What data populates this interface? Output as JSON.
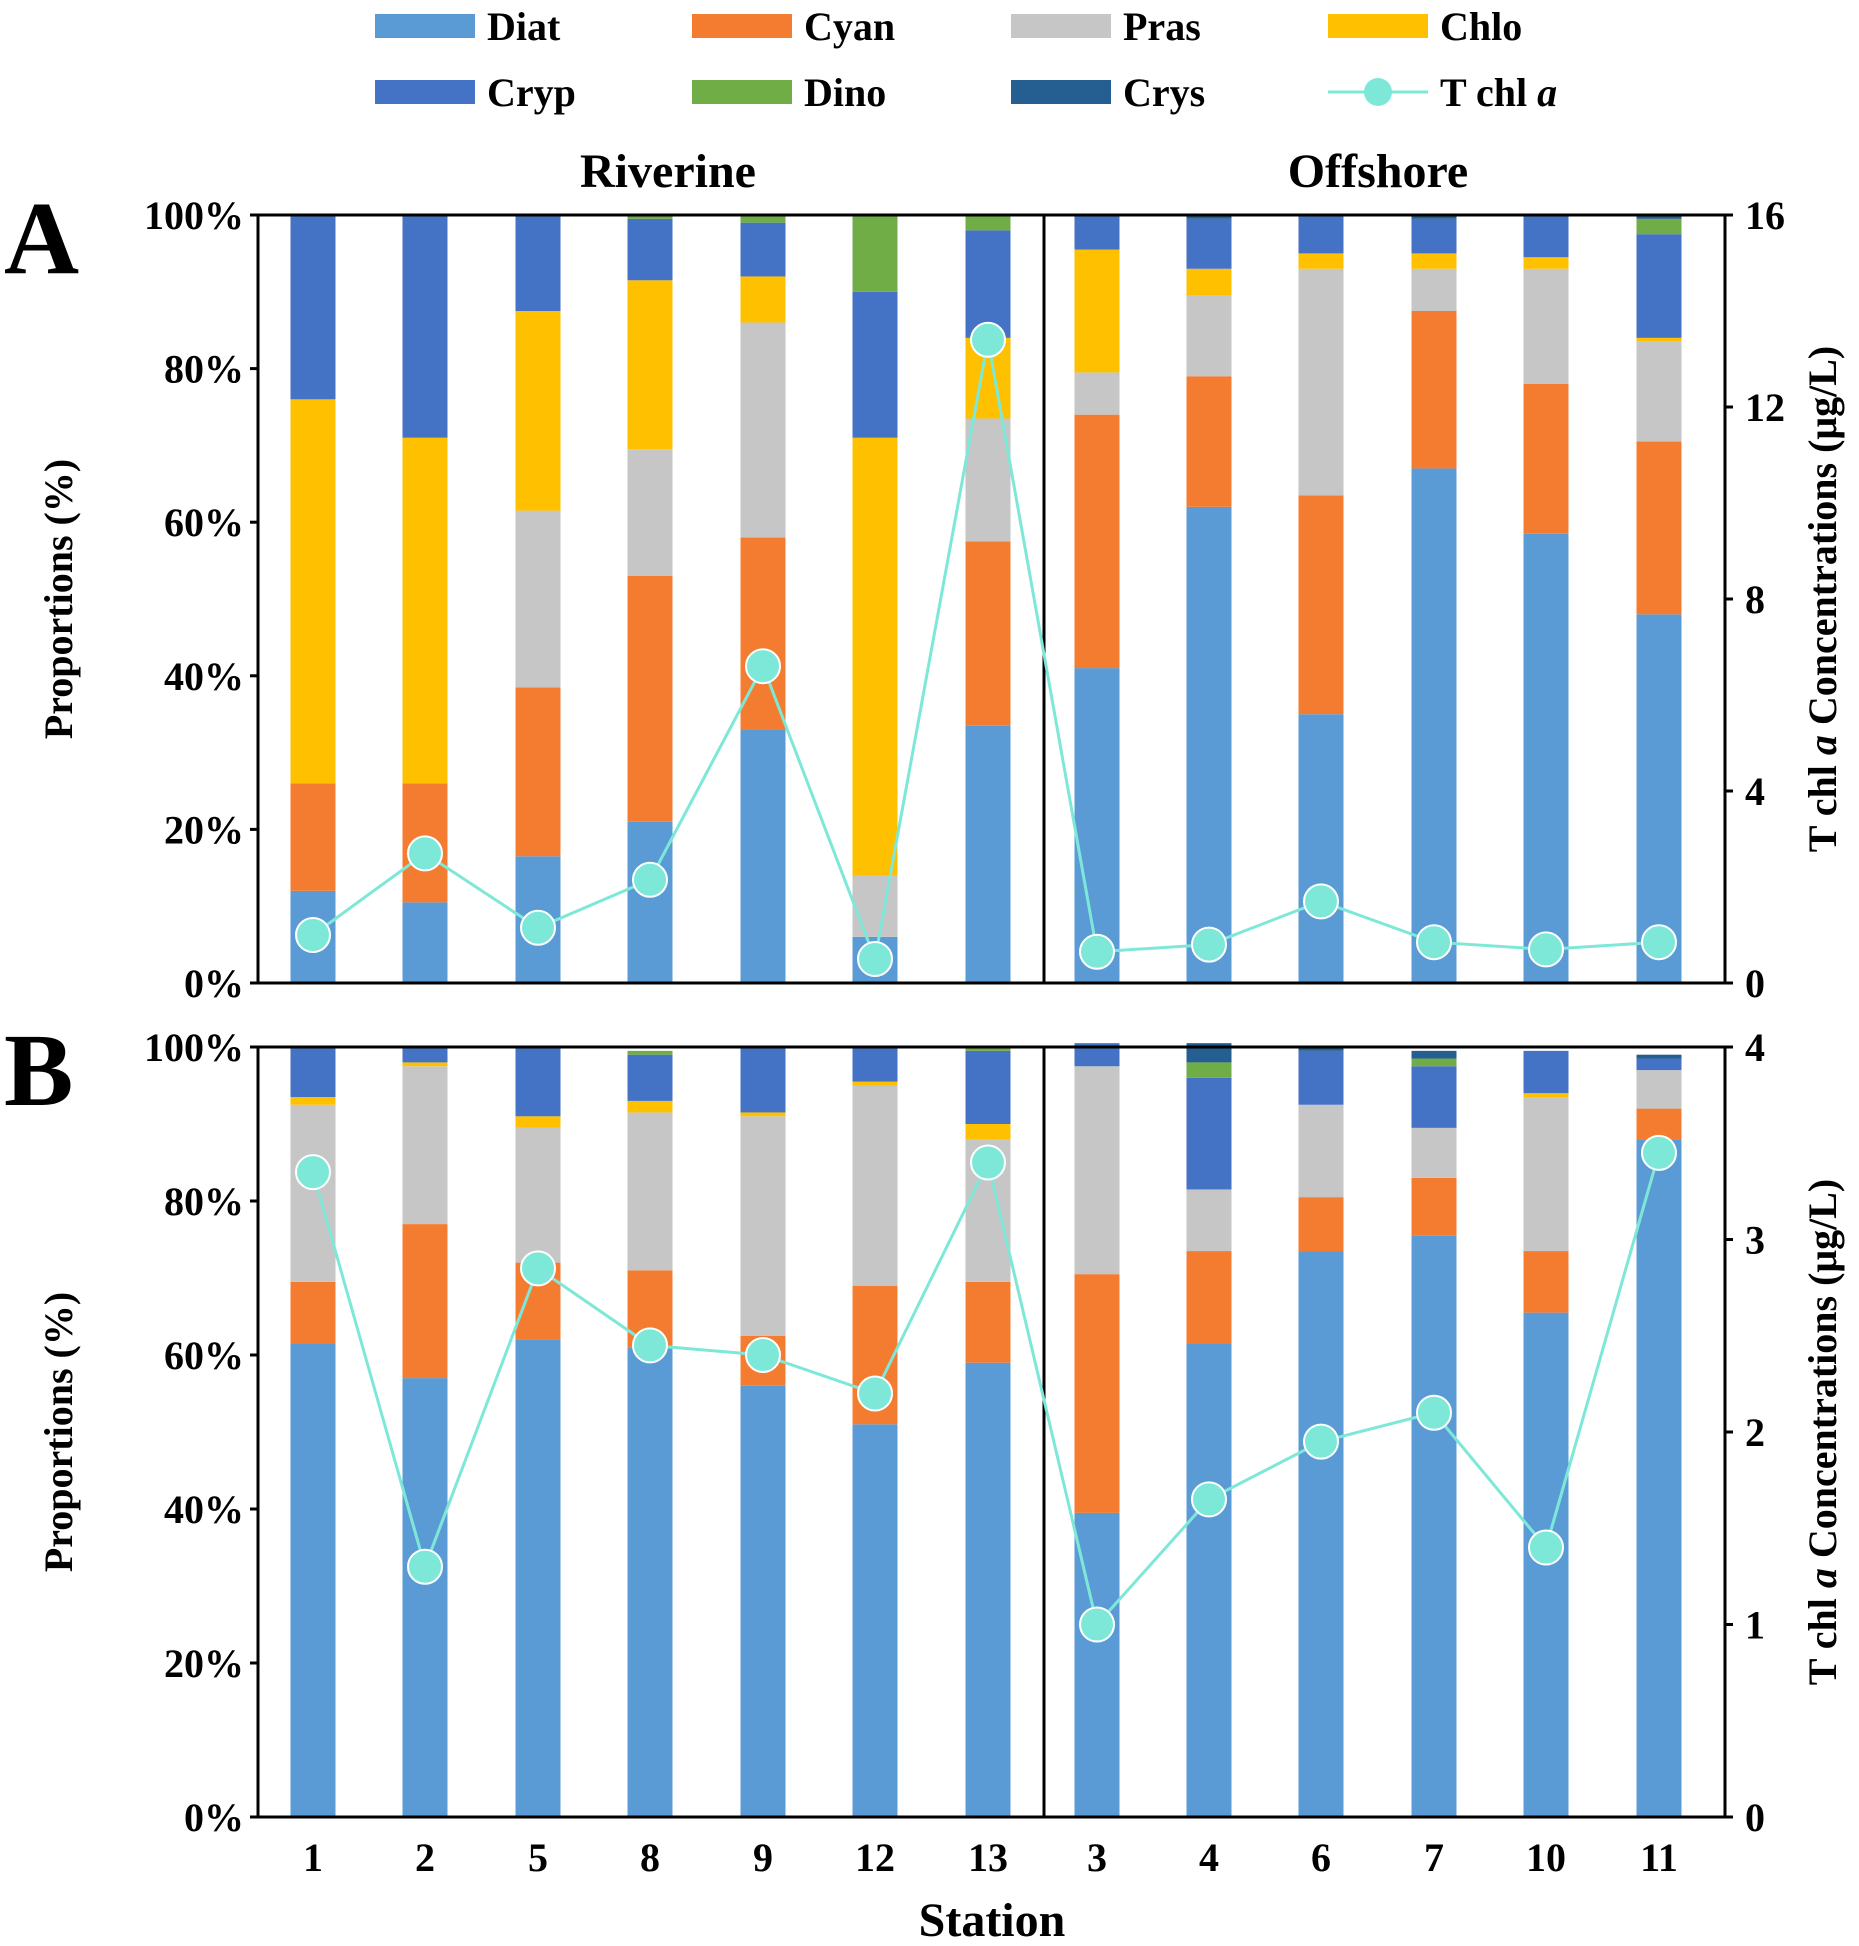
{
  "chart_data": {
    "type": "stacked-bar-with-line",
    "legend": {
      "items": [
        {
          "key": "Diat",
          "label": "Diat",
          "color": "#5B9BD5",
          "kind": "bar"
        },
        {
          "key": "Cyan",
          "label": "Cyan",
          "color": "#F47C30",
          "kind": "bar"
        },
        {
          "key": "Pras",
          "label": "Pras",
          "color": "#C6C6C6",
          "kind": "bar"
        },
        {
          "key": "Chlo",
          "label": "Chlo",
          "color": "#FFC000",
          "kind": "bar"
        },
        {
          "key": "Cryp",
          "label": "Cryp",
          "color": "#4472C4",
          "kind": "bar"
        },
        {
          "key": "Dino",
          "label": "Dino",
          "color": "#70AD47",
          "kind": "bar"
        },
        {
          "key": "Crys",
          "label": "Crys",
          "color": "#255E91",
          "kind": "bar"
        },
        {
          "key": "Tchla",
          "label": "T chl ",
          "label_italic": "a",
          "color": "#7EE8D8",
          "kind": "line"
        }
      ]
    },
    "series_order": [
      "Diat",
      "Cyan",
      "Pras",
      "Chlo",
      "Cryp",
      "Dino",
      "Crys"
    ],
    "regions": [
      "Riverine",
      "Offshore"
    ],
    "stations": [
      "1",
      "2",
      "5",
      "8",
      "9",
      "12",
      "13",
      "3",
      "4",
      "6",
      "7",
      "10",
      "11"
    ],
    "riverine_count": 7,
    "xlabel": "Station",
    "ylabel_left": "Proportions (%)",
    "ylabel_right_prefix": "T chl ",
    "ylabel_right_italic": "a",
    "ylabel_right_suffix": " Concentrations  (μg/L)",
    "panels": [
      {
        "letter": "A",
        "y_ticks": [
          "0%",
          "20%",
          "40%",
          "60%",
          "80%",
          "100%"
        ],
        "y2_ticks": [
          "0",
          "4",
          "8",
          "12",
          "16"
        ],
        "y2lim": [
          0,
          16
        ],
        "composition": {
          "Diat": [
            12,
            10.5,
            16.5,
            21,
            33,
            6,
            33.5,
            41,
            62,
            35,
            67,
            58.5,
            48
          ],
          "Cyan": [
            14,
            15.5,
            22,
            32,
            25,
            0,
            24,
            33,
            17,
            28.5,
            20.5,
            19.5,
            22.5
          ],
          "Pras": [
            0,
            0,
            23,
            16.5,
            28,
            8,
            16,
            5.5,
            10.5,
            29.5,
            5.5,
            15,
            13
          ],
          "Chlo": [
            50,
            45,
            26,
            22,
            6,
            57,
            10.5,
            16,
            3.5,
            2,
            2,
            1.5,
            0.5
          ],
          "Cryp": [
            24,
            29,
            12.5,
            8,
            7,
            19,
            14,
            4.5,
            6.5,
            5,
            4.5,
            5.5,
            13.5
          ],
          "Dino": [
            0,
            0,
            0,
            0.5,
            1,
            10,
            2,
            0,
            0,
            0,
            0,
            0,
            2
          ],
          "Crys": [
            0,
            0,
            0,
            0,
            0,
            0,
            0,
            0,
            0.5,
            0,
            0.5,
            0,
            0.5
          ]
        },
        "tchla": [
          1.0,
          2.7,
          1.15,
          2.15,
          6.6,
          0.5,
          13.4,
          0.65,
          0.8,
          1.7,
          0.85,
          0.7,
          0.85
        ]
      },
      {
        "letter": "B",
        "y_ticks": [
          "0%",
          "20%",
          "40%",
          "60%",
          "80%",
          "100%"
        ],
        "y2_ticks": [
          "0",
          "1",
          "2",
          "3",
          "4"
        ],
        "y2lim": [
          0,
          4
        ],
        "composition": {
          "Diat": [
            61.5,
            57,
            62,
            61,
            56,
            51,
            59,
            39.5,
            61.5,
            73.5,
            75.5,
            65.5,
            88
          ],
          "Cyan": [
            8,
            20,
            10,
            10,
            6.5,
            18,
            10.5,
            31,
            12,
            7,
            7.5,
            8,
            4
          ],
          "Pras": [
            23,
            20.5,
            17.5,
            20.5,
            28.5,
            26,
            18.5,
            27,
            8,
            12,
            6.5,
            20,
            5
          ],
          "Chlo": [
            1,
            0.5,
            1.5,
            1.5,
            0.5,
            0.5,
            2,
            0,
            0,
            0,
            0,
            0.5,
            0
          ],
          "Cryp": [
            6.5,
            2,
            9,
            6,
            8.5,
            4.5,
            9.5,
            3,
            14.5,
            7,
            8,
            5.5,
            1.5
          ],
          "Dino": [
            0,
            0,
            0,
            0.5,
            0,
            0,
            0.5,
            0,
            2,
            0,
            1,
            0,
            0
          ],
          "Crys": [
            0,
            0,
            0,
            0,
            0,
            0,
            0,
            0,
            2.5,
            0.5,
            1,
            0,
            0.5
          ]
        },
        "tchla": [
          3.35,
          1.3,
          2.85,
          2.45,
          2.4,
          2.2,
          3.4,
          1.0,
          1.65,
          1.95,
          2.1,
          1.4,
          3.45
        ]
      }
    ]
  }
}
